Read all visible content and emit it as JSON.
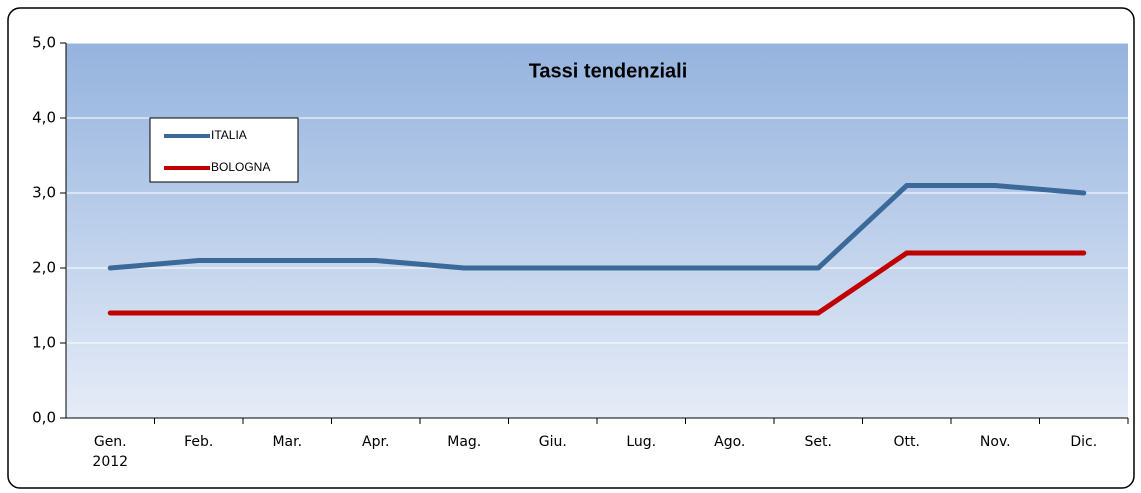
{
  "chart_data": {
    "type": "line",
    "title": "Tassi tendenziali",
    "categories": [
      "Gen.\n2012",
      "Feb.",
      "Mar.",
      "Apr.",
      "Mag.",
      "Giu.",
      "Lug.",
      "Ago.",
      "Set.",
      "Ott.",
      "Nov.",
      "Dic."
    ],
    "series": [
      {
        "name": "ITALIA",
        "color": "#3b6a9a",
        "values": [
          2.0,
          2.1,
          2.1,
          2.1,
          2.0,
          2.0,
          2.0,
          2.0,
          2.0,
          3.1,
          3.1,
          3.0
        ]
      },
      {
        "name": "BOLOGNA",
        "color": "#c00000",
        "values": [
          1.4,
          1.4,
          1.4,
          1.4,
          1.4,
          1.4,
          1.4,
          1.4,
          1.4,
          2.2,
          2.2,
          2.2
        ]
      }
    ],
    "ylim": [
      0,
      5
    ],
    "yticks": [
      {
        "value": 0,
        "label": "0,0"
      },
      {
        "value": 1,
        "label": "1,0"
      },
      {
        "value": 2,
        "label": "2,0"
      },
      {
        "value": 3,
        "label": "3,0"
      },
      {
        "value": 4,
        "label": "4,0"
      },
      {
        "value": 5,
        "label": "5,0"
      }
    ],
    "grid": true,
    "legend": "upper-left"
  }
}
